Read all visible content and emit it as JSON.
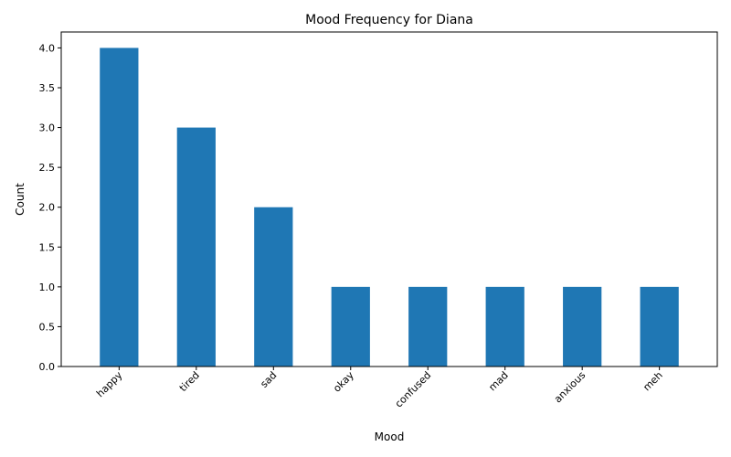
{
  "chart_data": {
    "type": "bar",
    "title": "Mood Frequency for Diana",
    "xlabel": "Mood",
    "ylabel": "Count",
    "categories": [
      "happy",
      "tired",
      "sad",
      "okay",
      "confused",
      "mad",
      "anxious",
      "meh"
    ],
    "values": [
      4,
      3,
      2,
      1,
      1,
      1,
      1,
      1
    ],
    "ylim": [
      0,
      4.2
    ],
    "yticks": [
      "0.0",
      "0.5",
      "1.0",
      "1.5",
      "2.0",
      "2.5",
      "3.0",
      "3.5",
      "4.0"
    ],
    "bar_color": "#1f77b4",
    "grid": false,
    "legend": "none"
  }
}
